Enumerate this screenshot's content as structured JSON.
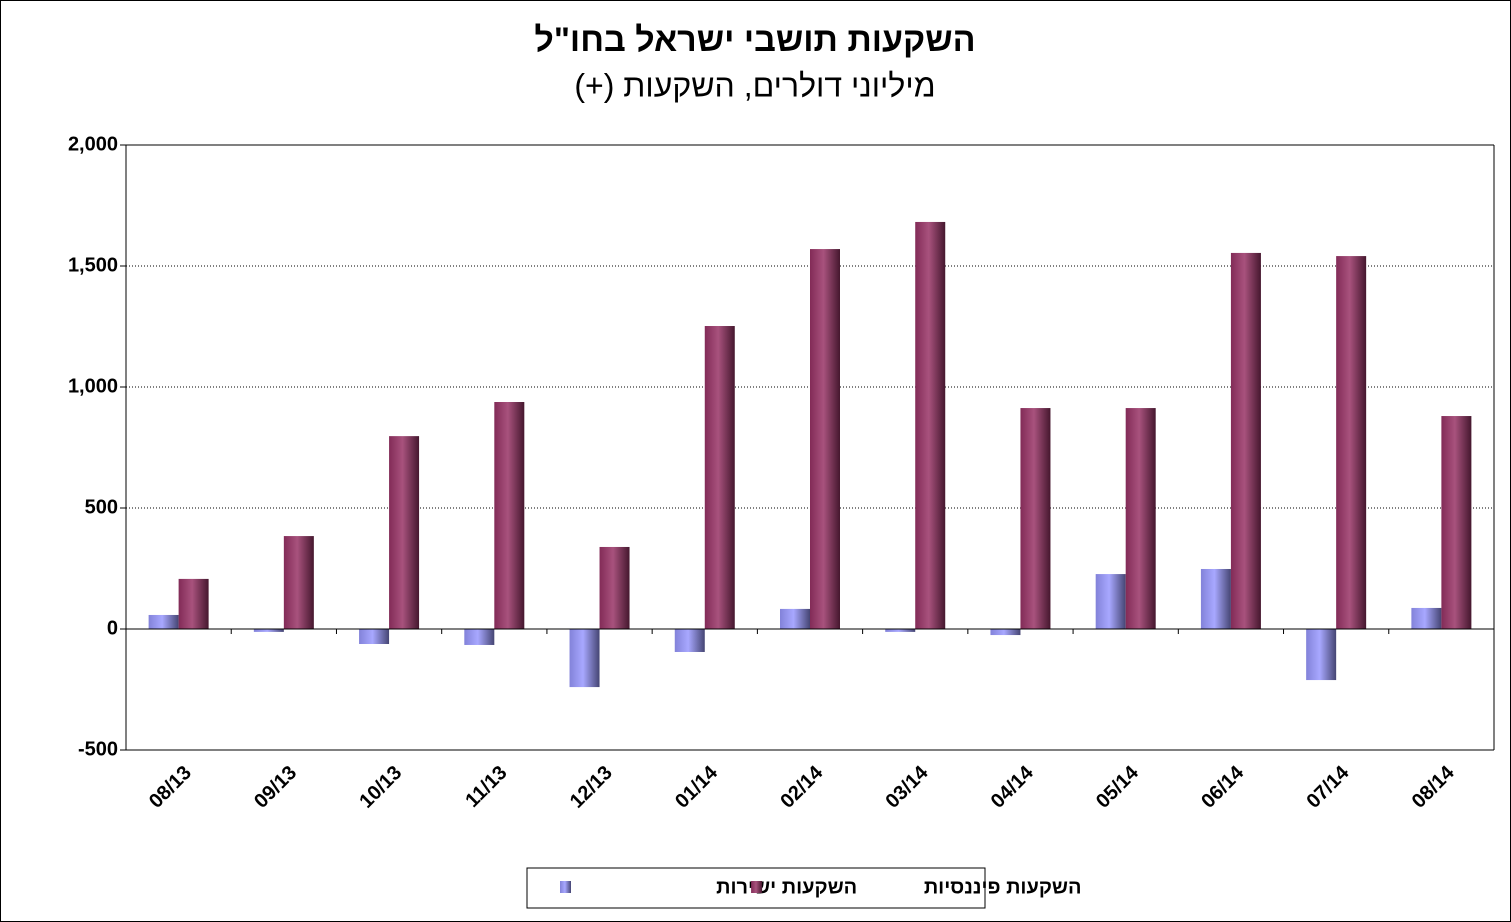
{
  "chart_data": {
    "type": "bar",
    "title": "השקעות תושבי ישראל בחו\"ל",
    "subtitle": "מיליוני דולרים, השקעות (+)",
    "categories": [
      "08/13",
      "09/13",
      "10/13",
      "11/13",
      "12/13",
      "01/14",
      "02/14",
      "03/14",
      "04/14",
      "05/14",
      "06/14",
      "07/14",
      "08/14"
    ],
    "series": [
      {
        "name": "השקעות ישירות",
        "color": "#9999ff",
        "values": [
          58,
          -12,
          -62,
          -66,
          -240,
          -95,
          83,
          -12,
          -25,
          227,
          248,
          -211,
          87
        ]
      },
      {
        "name": "השקעות פיננסיות",
        "color": "#993366",
        "values": [
          207,
          384,
          797,
          938,
          339,
          1252,
          1570,
          1682,
          913,
          913,
          1554,
          1541,
          880
        ]
      }
    ],
    "ylim": [
      -500,
      2000
    ],
    "yticks": [
      -500,
      0,
      500,
      {
        "value": 1000,
        "label": "1,000"
      },
      {
        "value": 1500,
        "label": "1,500"
      },
      {
        "value": 2000,
        "label": "2,000"
      }
    ],
    "grid": true,
    "legend": "bottom"
  }
}
